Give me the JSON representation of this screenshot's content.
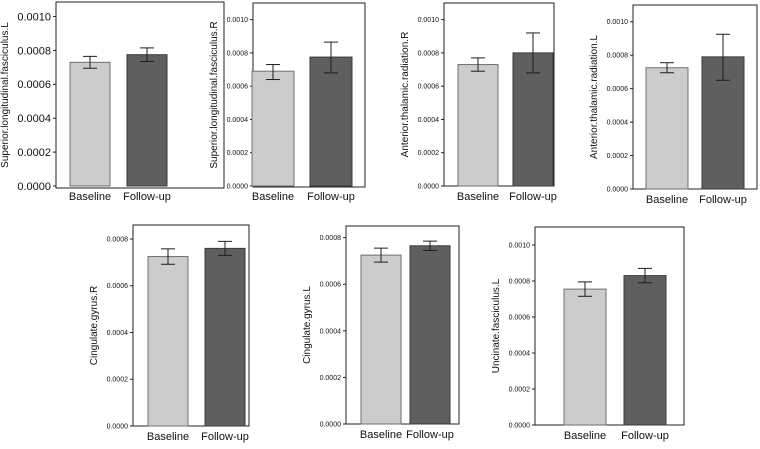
{
  "figure": {
    "group_labels": [
      "Baseline",
      "Follow-up"
    ],
    "colors": {
      "baseline": "#cccccc",
      "followup": "#5f5f5f",
      "frame": "#222222"
    }
  },
  "chart_data": [
    {
      "type": "bar",
      "title": "",
      "xlabel": "",
      "ylabel": "Superior.longitudinal.fasciculus.L",
      "categories": [
        "Baseline",
        "Follow-up"
      ],
      "values": [
        0.00073,
        0.000775
      ],
      "errors": [
        [
          0.000695,
          0.000765
        ],
        [
          0.000735,
          0.000815
        ]
      ],
      "ylim": [
        0,
        0.00108
      ],
      "yticks": [
        0,
        0.0002,
        0.0004,
        0.0006,
        0.0008,
        0.001
      ],
      "yticklabels": [
        "0.0000",
        "0.0002",
        "0.0004",
        "0.0006",
        "0.0008",
        "0.0010"
      ]
    },
    {
      "type": "bar",
      "title": "",
      "xlabel": "",
      "ylabel": "Superior.longitudinal.fasciculus.R",
      "categories": [
        "Baseline",
        "Follow-up"
      ],
      "values": [
        0.00069,
        0.000775
      ],
      "errors": [
        [
          0.00064,
          0.00073
        ],
        [
          0.00068,
          0.000865
        ]
      ],
      "ylim": [
        0,
        0.0011
      ],
      "yticks": [
        0,
        0.0002,
        0.0004,
        0.0006,
        0.0008,
        0.001
      ],
      "yticklabels": [
        "0.0000",
        "0.0002",
        "0.0004",
        "0.0006",
        "0.0008",
        "0.0010"
      ]
    },
    {
      "type": "bar",
      "title": "",
      "xlabel": "",
      "ylabel": "Anterior.thalamic.radiation.R",
      "categories": [
        "Baseline",
        "Follow-up"
      ],
      "values": [
        0.00073,
        0.0008
      ],
      "errors": [
        [
          0.00069,
          0.00077
        ],
        [
          0.00068,
          0.00092
        ]
      ],
      "ylim": [
        0,
        0.0011
      ],
      "yticks": [
        0,
        0.0002,
        0.0004,
        0.0006,
        0.0008,
        0.001
      ],
      "yticklabels": [
        "0.0000",
        "0.0002",
        "0.0004",
        "0.0006",
        "0.0008",
        "0.0010"
      ]
    },
    {
      "type": "bar",
      "title": "",
      "xlabel": "",
      "ylabel": "Anterior.thalamic.radiation.L",
      "categories": [
        "Baseline",
        "Follow-up"
      ],
      "values": [
        0.000725,
        0.00079
      ],
      "errors": [
        [
          0.000695,
          0.000755
        ],
        [
          0.00065,
          0.000925
        ]
      ],
      "ylim": [
        0,
        0.0011
      ],
      "yticks": [
        0,
        0.0002,
        0.0004,
        0.0006,
        0.0008,
        0.001
      ],
      "yticklabels": [
        "0.0000",
        "0.0002",
        "0.0004",
        "0.0006",
        "0.0008",
        "0.0010"
      ]
    },
    {
      "type": "bar",
      "title": "",
      "xlabel": "",
      "ylabel": "Cingulate.gyrus.R",
      "categories": [
        "Baseline",
        "Follow-up"
      ],
      "values": [
        0.000725,
        0.00076
      ],
      "errors": [
        [
          0.000692,
          0.000758
        ],
        [
          0.00073,
          0.00079
        ]
      ],
      "ylim": [
        0,
        0.00086
      ],
      "yticks": [
        0,
        0.0002,
        0.0004,
        0.0006,
        0.0008
      ],
      "yticklabels": [
        "0.0000",
        "0.0002",
        "0.0004",
        "0.0006",
        "0.0008"
      ]
    },
    {
      "type": "bar",
      "title": "",
      "xlabel": "",
      "ylabel": "Cingulate.gyrus.L",
      "categories": [
        "Baseline",
        "Follow-up"
      ],
      "values": [
        0.000725,
        0.000765
      ],
      "errors": [
        [
          0.000695,
          0.000755
        ],
        [
          0.000745,
          0.000785
        ]
      ],
      "ylim": [
        0,
        0.00085
      ],
      "yticks": [
        0,
        0.0002,
        0.0004,
        0.0006,
        0.0008
      ],
      "yticklabels": [
        "0.0000",
        "0.0002",
        "0.0004",
        "0.0006",
        "0.0008"
      ]
    },
    {
      "type": "bar",
      "title": "",
      "xlabel": "",
      "ylabel": "Uncinate.fasciculus.L",
      "categories": [
        "Baseline",
        "Follow-up"
      ],
      "values": [
        0.000755,
        0.00083
      ],
      "errors": [
        [
          0.000715,
          0.000795
        ],
        [
          0.00079,
          0.00087
        ]
      ],
      "ylim": [
        0,
        0.0011
      ],
      "yticks": [
        0,
        0.0002,
        0.0004,
        0.0006,
        0.0008,
        0.001
      ],
      "yticklabels": [
        "0.0000",
        "0.0002",
        "0.0004",
        "0.0006",
        "0.0008",
        "0.0010"
      ]
    }
  ]
}
